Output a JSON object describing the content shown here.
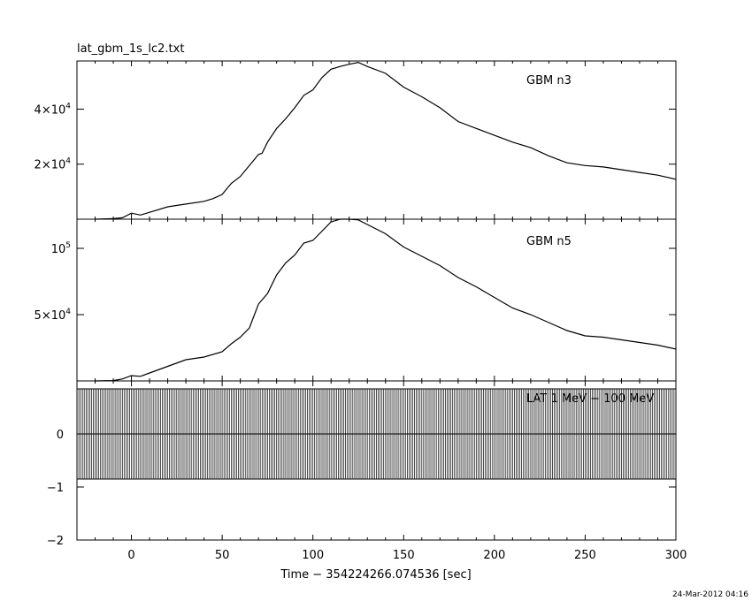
{
  "plot_title": "lat_gbm_1s_lc2.txt",
  "timestamp": "24-Mar-2012 04:16",
  "chart_data": {
    "type": "line",
    "title": "lat_gbm_1s_lc2.txt",
    "xlabel": "Time − 354224266.074536 [sec]",
    "xlim": [
      -30,
      300
    ],
    "xticks": [
      0,
      50,
      100,
      150,
      200,
      250,
      300
    ],
    "x_tick_labels": [
      "0",
      "50",
      "100",
      "150",
      "200",
      "250",
      "300"
    ],
    "grid": false,
    "panels": [
      {
        "name": "GBM n3",
        "ylim": [
          0,
          57500
        ],
        "y_tick_values": [
          20000,
          40000
        ],
        "y_tick_mantissa": [
          "2×10",
          "4×10"
        ],
        "y_tick_exponent": [
          "4",
          "4"
        ],
        "x": [
          -20,
          -10,
          -5,
          0,
          5,
          10,
          20,
          30,
          40,
          45,
          50,
          55,
          60,
          65,
          70,
          72,
          75,
          80,
          85,
          90,
          95,
          100,
          105,
          110,
          115,
          120,
          125,
          130,
          140,
          150,
          160,
          170,
          180,
          190,
          200,
          210,
          220,
          230,
          240,
          250,
          260,
          270,
          280,
          290,
          300
        ],
        "y": [
          0,
          200,
          500,
          2200,
          1500,
          2500,
          4500,
          5500,
          6500,
          7500,
          9000,
          13000,
          15500,
          19500,
          23500,
          24000,
          28000,
          33000,
          36500,
          40500,
          45000,
          47000,
          51500,
          54500,
          55500,
          56300,
          57000,
          55500,
          53000,
          48000,
          44500,
          40500,
          35500,
          33000,
          30500,
          28000,
          26000,
          23000,
          20500,
          19500,
          19000,
          18000,
          17000,
          16000,
          14500
        ]
      },
      {
        "name": "GBM n5",
        "ylim": [
          0,
          122000
        ],
        "y_tick_values": [
          50000,
          100000
        ],
        "y_tick_mantissa": [
          "5×10",
          "10"
        ],
        "y_tick_exponent": [
          "4",
          "5"
        ],
        "x": [
          -20,
          -10,
          -5,
          0,
          5,
          10,
          20,
          30,
          40,
          50,
          55,
          60,
          65,
          70,
          75,
          80,
          85,
          90,
          95,
          100,
          105,
          110,
          115,
          120,
          125,
          130,
          140,
          150,
          160,
          170,
          180,
          190,
          200,
          210,
          220,
          230,
          240,
          250,
          260,
          270,
          280,
          290,
          300
        ],
        "y": [
          0,
          300,
          1500,
          4000,
          3500,
          6000,
          11000,
          16000,
          18000,
          22000,
          28000,
          33000,
          40000,
          58000,
          66000,
          80000,
          89000,
          95000,
          104000,
          106000,
          113000,
          120000,
          122000,
          122000,
          121500,
          118000,
          111000,
          101000,
          94000,
          87000,
          78000,
          71000,
          63000,
          55000,
          50000,
          44000,
          38000,
          34000,
          33000,
          31000,
          29000,
          27000,
          24000
        ]
      },
      {
        "name": "LAT 1 MeV − 100 MeV",
        "ylim": [
          -2,
          1
        ],
        "y_tick_values": [
          -2,
          -1,
          0
        ],
        "y_tick_labels": [
          "−2",
          "−1",
          "0"
        ],
        "band_x": [
          -30,
          300
        ],
        "band_upper": [
          0.85,
          0.85
        ],
        "band_lower": [
          -0.85,
          -0.85
        ],
        "line_y": 0
      }
    ]
  }
}
